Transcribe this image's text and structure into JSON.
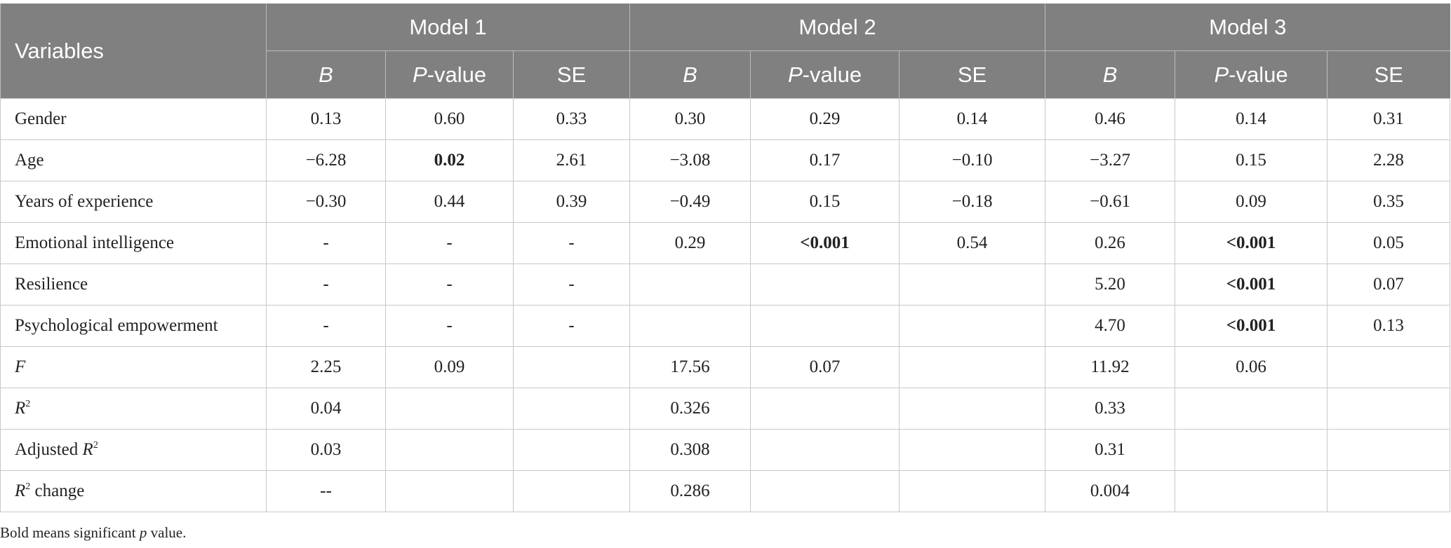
{
  "table": {
    "header": {
      "variables": "Variables",
      "models": [
        "Model 1",
        "Model 2",
        "Model 3"
      ],
      "subheaders": [
        [
          {
            "t": "B",
            "i": true
          }
        ],
        [
          {
            "t": "P",
            "i": true
          },
          {
            "t": "-value"
          }
        ],
        [
          {
            "t": "SE"
          }
        ],
        [
          {
            "t": "B",
            "i": true
          }
        ],
        [
          {
            "t": "P",
            "i": true
          },
          {
            "t": "-value"
          }
        ],
        [
          {
            "t": "SE"
          }
        ],
        [
          {
            "t": "B",
            "i": true
          }
        ],
        [
          {
            "t": "P",
            "i": true
          },
          {
            "t": "-value"
          }
        ],
        [
          {
            "t": "SE"
          }
        ]
      ]
    },
    "rows": [
      {
        "label": [
          {
            "t": "Gender"
          }
        ],
        "cells": [
          "0.13",
          "0.60",
          "0.33",
          "0.30",
          "0.29",
          "0.14",
          "0.46",
          "0.14",
          "0.31"
        ]
      },
      {
        "label": [
          {
            "t": "Age"
          }
        ],
        "cells": [
          "−6.28",
          {
            "text": "0.02",
            "bold": true
          },
          "2.61",
          "−3.08",
          "0.17",
          "−0.10",
          "−3.27",
          "0.15",
          "2.28"
        ]
      },
      {
        "label": [
          {
            "t": "Years of experience"
          }
        ],
        "cells": [
          "−0.30",
          "0.44",
          "0.39",
          "−0.49",
          "0.15",
          "−0.18",
          "−0.61",
          "0.09",
          "0.35"
        ]
      },
      {
        "label": [
          {
            "t": "Emotional intelligence"
          }
        ],
        "cells": [
          "-",
          "-",
          "-",
          "0.29",
          {
            "text": "<0.001",
            "bold": true
          },
          "0.54",
          "0.26",
          {
            "text": "<0.001",
            "bold": true
          },
          "0.05"
        ]
      },
      {
        "label": [
          {
            "t": "Resilience"
          }
        ],
        "cells": [
          "-",
          "-",
          "-",
          null,
          null,
          null,
          "5.20",
          {
            "text": "<0.001",
            "bold": true
          },
          "0.07"
        ]
      },
      {
        "label": [
          {
            "t": "Psychological empowerment"
          }
        ],
        "cells": [
          "-",
          "-",
          "-",
          null,
          null,
          null,
          "4.70",
          {
            "text": "<0.001",
            "bold": true
          },
          "0.13"
        ]
      },
      {
        "label": [
          {
            "t": "F",
            "i": true
          }
        ],
        "cells": [
          "2.25",
          "0.09",
          null,
          "17.56",
          "0.07",
          null,
          "11.92",
          "0.06",
          null
        ]
      },
      {
        "label": [
          {
            "t": "R",
            "i": true
          },
          {
            "t": "2",
            "sup": true
          }
        ],
        "cells": [
          "0.04",
          null,
          null,
          "0.326",
          null,
          null,
          "0.33",
          null,
          null
        ]
      },
      {
        "label": [
          {
            "t": "Adjusted "
          },
          {
            "t": "R",
            "i": true
          },
          {
            "t": "2",
            "sup": true
          }
        ],
        "cells": [
          "0.03",
          null,
          null,
          "0.308",
          null,
          null,
          "0.31",
          null,
          null
        ]
      },
      {
        "label": [
          {
            "t": "R",
            "i": true
          },
          {
            "t": "2",
            "sup": true
          },
          {
            "t": " change"
          }
        ],
        "cells": [
          "--",
          null,
          null,
          "0.286",
          null,
          null,
          "0.004",
          null,
          null
        ]
      }
    ],
    "footnote": [
      {
        "t": "Bold means significant "
      },
      {
        "t": "p",
        "i": true
      },
      {
        "t": " value."
      }
    ]
  }
}
